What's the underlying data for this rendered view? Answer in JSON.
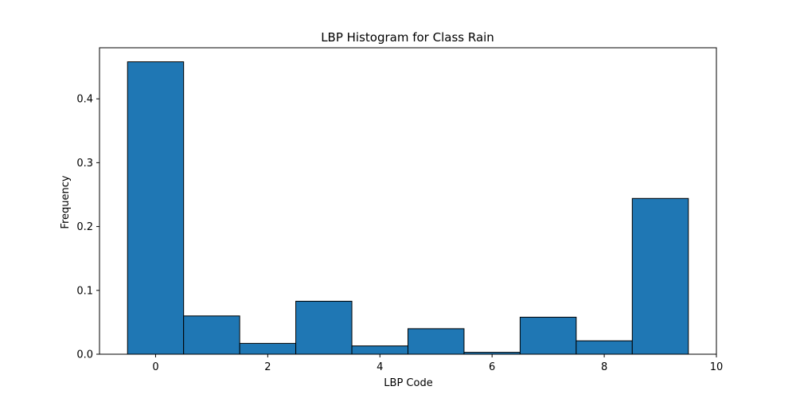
{
  "chart_data": {
    "type": "bar",
    "title": "LBP Histogram for Class Rain",
    "xlabel": "LBP Code",
    "ylabel": "Frequency",
    "x": [
      0,
      1,
      2,
      3,
      4,
      5,
      6,
      7,
      8,
      9
    ],
    "values": [
      0.458,
      0.06,
      0.017,
      0.083,
      0.013,
      0.04,
      0.003,
      0.058,
      0.021,
      0.244
    ],
    "bar_width": 1,
    "xlim": [
      -1,
      10
    ],
    "ylim": [
      0,
      0.48
    ],
    "xticks": [
      0,
      2,
      4,
      6,
      8,
      10
    ],
    "yticks": [
      0.0,
      0.1,
      0.2,
      0.3,
      0.4
    ],
    "xtick_labels": [
      "0",
      "2",
      "4",
      "6",
      "8",
      "10"
    ],
    "ytick_labels": [
      "0.0",
      "0.1",
      "0.2",
      "0.3",
      "0.4"
    ],
    "bar_color": "#1f77b4",
    "edge_color": "#000000",
    "grid": false
  }
}
